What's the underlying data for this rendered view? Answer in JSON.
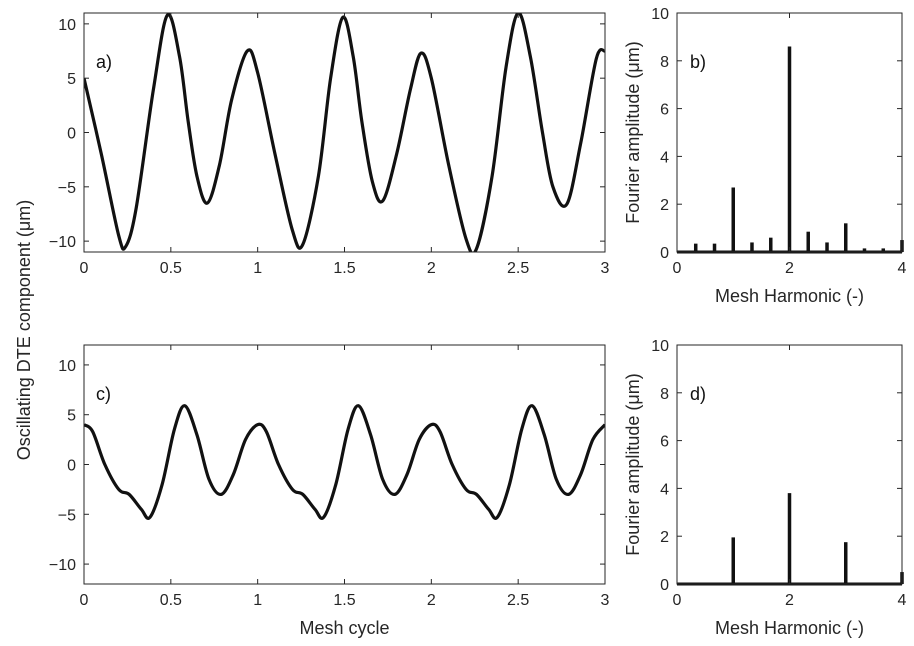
{
  "figure": {
    "shared_ylabel": "Oscillating DTE component (μm)",
    "shared_xlabel": "Mesh cycle"
  },
  "chart_data": [
    {
      "id": "a",
      "type": "line",
      "panel_label": "a)",
      "xlabel": "",
      "ylabel": "",
      "xlim": [
        0,
        3
      ],
      "ylim": [
        -11,
        11
      ],
      "xticks": [
        0,
        0.5,
        1,
        1.5,
        2,
        2.5,
        3
      ],
      "xtick_labels": [
        "0",
        "0.5",
        "1",
        "1.5",
        "2",
        "2.5",
        "3"
      ],
      "yticks": [
        -10,
        -5,
        0,
        5,
        10
      ],
      "ytick_labels": [
        "−10",
        "−5",
        "0",
        "5",
        "10"
      ],
      "line_color": "#111111",
      "series": [
        {
          "x": [
            0,
            0.1,
            0.2,
            0.24,
            0.3,
            0.4,
            0.48,
            0.55,
            0.6,
            0.65,
            0.71,
            0.78,
            0.85,
            0.94,
            1.0,
            1.1,
            1.2,
            1.26,
            1.35,
            1.42,
            1.49,
            1.55,
            1.6,
            1.66,
            1.72,
            1.8,
            1.88,
            1.94,
            2.0,
            2.1,
            2.2,
            2.26,
            2.35,
            2.43,
            2.5,
            2.57,
            2.64,
            2.7,
            2.78,
            2.86,
            2.95,
            3.0
          ],
          "y": [
            5,
            -2,
            -9.5,
            -10.5,
            -7,
            4,
            10.8,
            7,
            1,
            -4,
            -6.5,
            -3,
            3,
            7.5,
            5.5,
            -2,
            -9,
            -10.3,
            -4,
            5,
            10.6,
            7,
            1,
            -4.5,
            -6.3,
            -2,
            4,
            7.3,
            5,
            -3,
            -9.8,
            -10.7,
            -4,
            6,
            11,
            7,
            0,
            -5,
            -6.6,
            -1,
            6.8,
            7.5
          ]
        }
      ]
    },
    {
      "id": "b",
      "type": "bar",
      "panel_label": "b)",
      "xlabel": "Mesh Harmonic (-)",
      "ylabel": "Fourier amplitude (μm)",
      "xlim": [
        0,
        4
      ],
      "ylim": [
        0,
        10
      ],
      "xticks": [
        0,
        2,
        4
      ],
      "xtick_labels": [
        "0",
        "2",
        "4"
      ],
      "yticks": [
        0,
        2,
        4,
        6,
        8,
        10
      ],
      "ytick_labels": [
        "0",
        "2",
        "4",
        "6",
        "8",
        "10"
      ],
      "bar_color": "#111111",
      "x": [
        0.333,
        0.667,
        1.0,
        1.333,
        1.667,
        2.0,
        2.333,
        2.667,
        3.0,
        3.333,
        3.667,
        4.0
      ],
      "values": [
        0.35,
        0.35,
        2.7,
        0.4,
        0.6,
        8.6,
        0.85,
        0.4,
        1.2,
        0.15,
        0.15,
        0.5
      ]
    },
    {
      "id": "c",
      "type": "line",
      "panel_label": "c)",
      "xlabel": "Mesh cycle",
      "ylabel": "",
      "xlim": [
        0,
        3
      ],
      "ylim": [
        -12,
        12
      ],
      "xticks": [
        0,
        0.5,
        1,
        1.5,
        2,
        2.5,
        3
      ],
      "xtick_labels": [
        "0",
        "0.5",
        "1",
        "1.5",
        "2",
        "2.5",
        "3"
      ],
      "yticks": [
        -10,
        -5,
        0,
        5,
        10
      ],
      "ytick_labels": [
        "−10",
        "−5",
        "0",
        "5",
        "10"
      ],
      "line_color": "#111111",
      "series": [
        {
          "x": [
            0,
            0.05,
            0.12,
            0.2,
            0.26,
            0.33,
            0.38,
            0.45,
            0.52,
            0.58,
            0.65,
            0.72,
            0.79,
            0.86,
            0.93,
            1.0,
            1.05,
            1.12,
            1.2,
            1.26,
            1.33,
            1.38,
            1.45,
            1.52,
            1.58,
            1.65,
            1.72,
            1.79,
            1.86,
            1.93,
            2.0,
            2.05,
            2.12,
            2.2,
            2.26,
            2.33,
            2.38,
            2.45,
            2.52,
            2.58,
            2.65,
            2.72,
            2.79,
            2.86,
            2.93,
            3.0
          ],
          "y": [
            4,
            3.3,
            0,
            -2.5,
            -3,
            -4.5,
            -5.3,
            -2,
            3.5,
            5.9,
            3,
            -1.5,
            -3,
            -1,
            2.5,
            4,
            3.3,
            0,
            -2.5,
            -3,
            -4.5,
            -5.3,
            -2,
            3.5,
            5.9,
            3,
            -1.5,
            -3,
            -1,
            2.5,
            4,
            3.3,
            0,
            -2.5,
            -3,
            -4.5,
            -5.3,
            -2,
            3.5,
            5.9,
            3,
            -1.5,
            -3,
            -1,
            2.5,
            4
          ]
        }
      ]
    },
    {
      "id": "d",
      "type": "bar",
      "panel_label": "d)",
      "xlabel": "Mesh Harmonic (-)",
      "ylabel": "Fourier amplitude (μm)",
      "xlim": [
        0,
        4
      ],
      "ylim": [
        0,
        10
      ],
      "xticks": [
        0,
        2,
        4
      ],
      "xtick_labels": [
        "0",
        "2",
        "4"
      ],
      "yticks": [
        0,
        2,
        4,
        6,
        8,
        10
      ],
      "ytick_labels": [
        "0",
        "2",
        "4",
        "6",
        "8",
        "10"
      ],
      "bar_color": "#111111",
      "x": [
        1.0,
        2.0,
        3.0,
        4.0
      ],
      "values": [
        1.95,
        3.8,
        1.75,
        0.5
      ]
    }
  ]
}
